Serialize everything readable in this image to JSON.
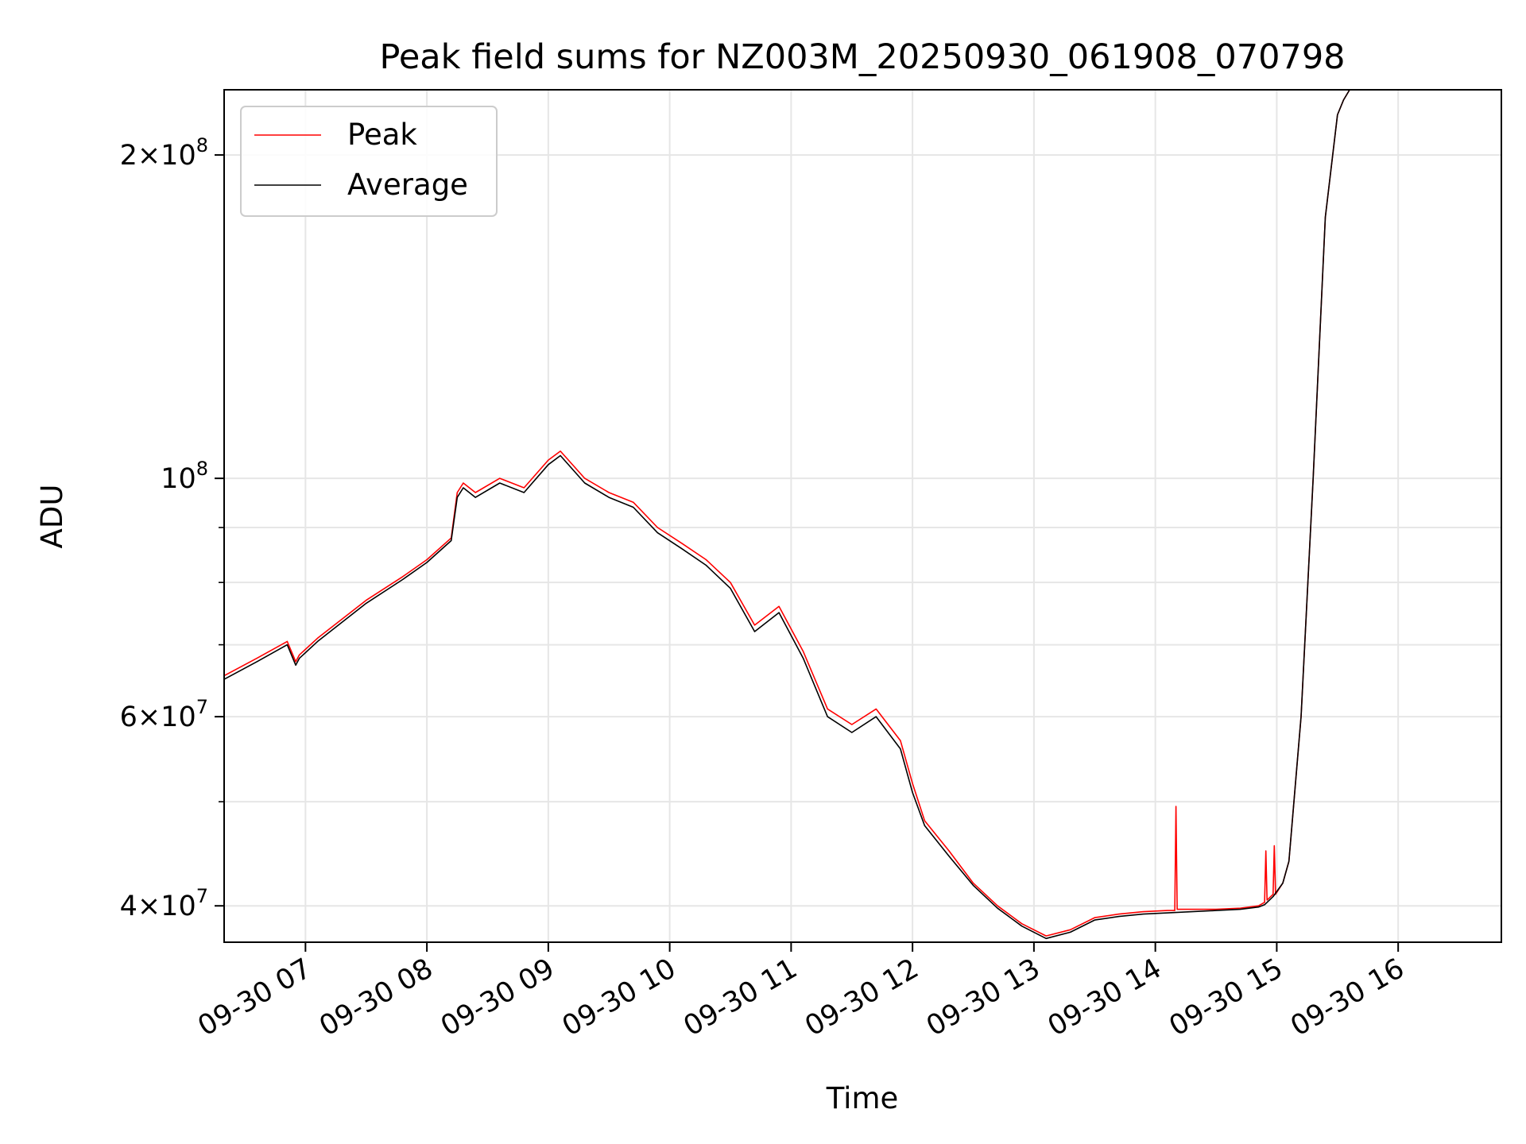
{
  "chart_data": {
    "type": "line",
    "title": "Peak field sums for NZ003M_20250930_061908_070798",
    "xlabel": "Time",
    "ylabel": "ADU",
    "yscale": "log",
    "xlim": [
      6.33,
      16.85
    ],
    "ylim": [
      37000000,
      230000000
    ],
    "grid": true,
    "legend_position": "top-left",
    "x_ticks": [
      {
        "value": 7,
        "label": "09-30 07"
      },
      {
        "value": 8,
        "label": "09-30 08"
      },
      {
        "value": 9,
        "label": "09-30 09"
      },
      {
        "value": 10,
        "label": "09-30 10"
      },
      {
        "value": 11,
        "label": "09-30 11"
      },
      {
        "value": 12,
        "label": "09-30 12"
      },
      {
        "value": 13,
        "label": "09-30 13"
      },
      {
        "value": 14,
        "label": "09-30 14"
      },
      {
        "value": 15,
        "label": "09-30 15"
      },
      {
        "value": 16,
        "label": "09-30 16"
      }
    ],
    "y_major_ticks": [
      {
        "value": 40000000,
        "base": "4×10",
        "exp": "7"
      },
      {
        "value": 60000000,
        "base": "6×10",
        "exp": "7"
      },
      {
        "value": 100000000,
        "base": "10",
        "exp": "8"
      },
      {
        "value": 200000000,
        "base": "2×10",
        "exp": "8"
      }
    ],
    "y_minor_ticks": [
      50000000,
      70000000,
      80000000,
      90000000
    ],
    "series": [
      {
        "name": "Peak",
        "color": "#ff0000",
        "x": [
          6.33,
          6.6,
          6.85,
          6.92,
          6.95,
          7.1,
          7.5,
          7.8,
          8.0,
          8.2,
          8.25,
          8.3,
          8.4,
          8.6,
          8.8,
          9.0,
          9.1,
          9.3,
          9.5,
          9.7,
          9.9,
          10.1,
          10.3,
          10.5,
          10.7,
          10.9,
          11.1,
          11.3,
          11.5,
          11.7,
          11.9,
          12.0,
          12.1,
          12.3,
          12.5,
          12.7,
          12.9,
          13.1,
          13.3,
          13.5,
          13.7,
          13.9,
          14.1,
          14.16,
          14.17,
          14.18,
          14.3,
          14.5,
          14.7,
          14.85,
          14.9,
          14.91,
          14.92,
          14.97,
          14.98,
          14.99,
          15.05,
          15.1,
          15.2,
          15.3,
          15.4,
          15.5,
          15.55,
          15.6,
          15.7
        ],
        "y": [
          65500000,
          68000000,
          70500000,
          67500000,
          68500000,
          71000000,
          77000000,
          81000000,
          84000000,
          88000000,
          97000000,
          99000000,
          97000000,
          100000000,
          98000000,
          104000000,
          106000000,
          100000000,
          97000000,
          95000000,
          90000000,
          87000000,
          84000000,
          80000000,
          73000000,
          76000000,
          69000000,
          61000000,
          59000000,
          61000000,
          57000000,
          52000000,
          48000000,
          45000000,
          42000000,
          40000000,
          38500000,
          37500000,
          38000000,
          39000000,
          39300000,
          39500000,
          39600000,
          39600000,
          49500000,
          39700000,
          39700000,
          39700000,
          39800000,
          40000000,
          40300000,
          45000000,
          40500000,
          41000000,
          45500000,
          41000000,
          42000000,
          44000000,
          60000000,
          100000000,
          175000000,
          218000000,
          225000000,
          230000000,
          230000000
        ]
      },
      {
        "name": "Average",
        "color": "#000000",
        "x": [
          6.33,
          6.6,
          6.85,
          6.92,
          6.95,
          7.1,
          7.5,
          7.8,
          8.0,
          8.2,
          8.25,
          8.3,
          8.4,
          8.6,
          8.8,
          9.0,
          9.1,
          9.3,
          9.5,
          9.7,
          9.9,
          10.1,
          10.3,
          10.5,
          10.7,
          10.9,
          11.1,
          11.3,
          11.5,
          11.7,
          11.9,
          12.0,
          12.1,
          12.3,
          12.5,
          12.7,
          12.9,
          13.1,
          13.3,
          13.5,
          13.7,
          13.9,
          14.1,
          14.3,
          14.5,
          14.7,
          14.85,
          14.9,
          14.97,
          15.05,
          15.1,
          15.2,
          15.3,
          15.4,
          15.5,
          15.55,
          15.6,
          15.7
        ],
        "y": [
          65000000,
          67500000,
          70000000,
          67000000,
          68000000,
          70500000,
          76500000,
          80500000,
          83500000,
          87500000,
          96000000,
          98000000,
          96000000,
          99000000,
          97000000,
          103000000,
          105000000,
          99000000,
          96000000,
          94000000,
          89000000,
          86000000,
          83000000,
          79000000,
          72000000,
          75000000,
          68000000,
          60000000,
          58000000,
          60000000,
          56000000,
          51000000,
          47500000,
          44500000,
          41800000,
          39800000,
          38300000,
          37300000,
          37800000,
          38800000,
          39100000,
          39300000,
          39400000,
          39500000,
          39600000,
          39700000,
          39900000,
          40100000,
          40800000,
          42000000,
          44000000,
          60000000,
          100000000,
          175000000,
          218000000,
          225000000,
          230000000,
          230000000
        ]
      }
    ]
  }
}
